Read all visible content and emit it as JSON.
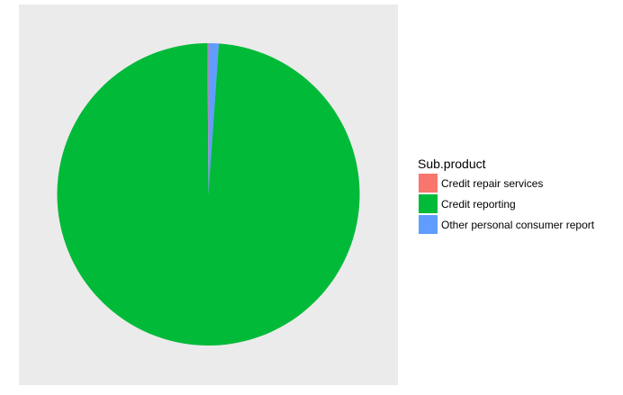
{
  "chart_data": {
    "type": "pie",
    "title": "",
    "legend_title": "Sub.product",
    "legend_position": "right",
    "panel_background": "#EBEBEB",
    "slices": [
      {
        "label": "Credit repair services",
        "value": 0.1,
        "color": "#F8766D"
      },
      {
        "label": "Credit reporting",
        "value": 98.8,
        "color": "#00BA38"
      },
      {
        "label": "Other personal consumer report",
        "value": 1.1,
        "color": "#619CFF"
      }
    ]
  }
}
